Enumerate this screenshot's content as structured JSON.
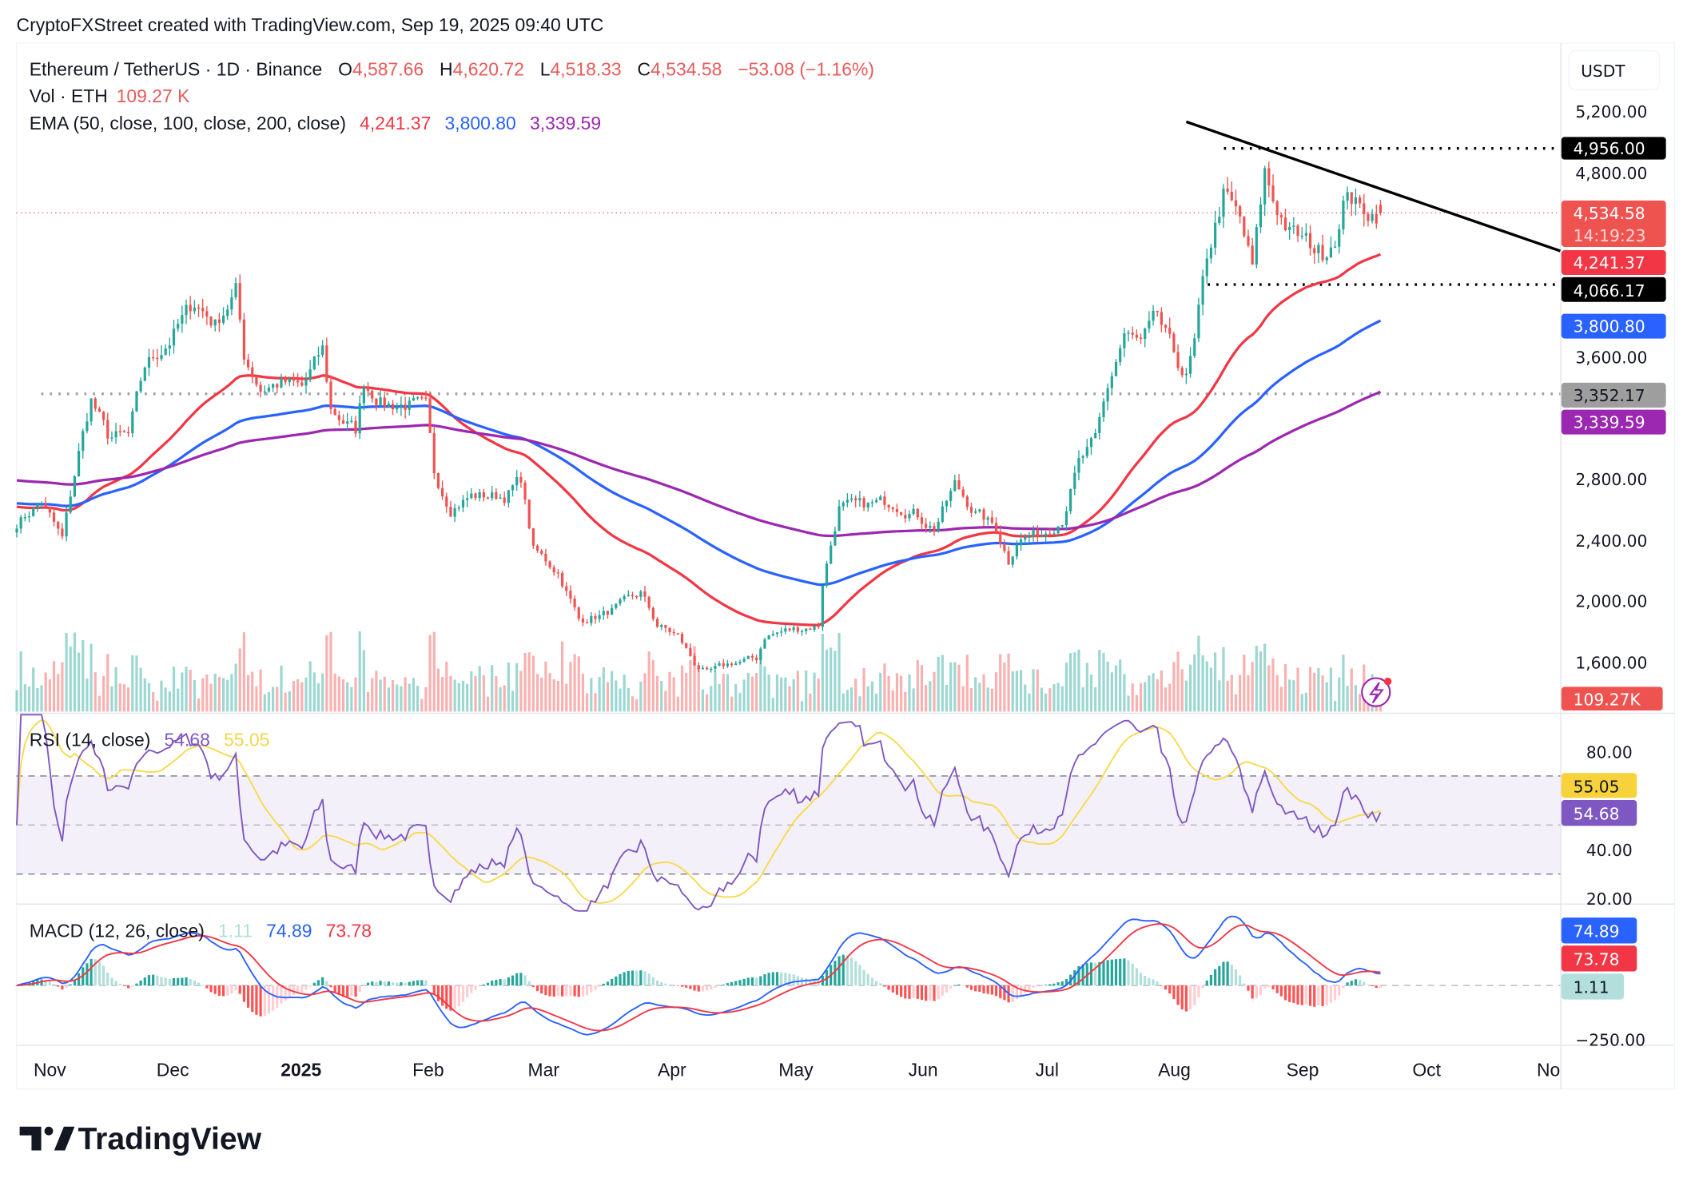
{
  "caption": "CryptoFXStreet created with TradingView.com, Sep 19, 2025 09:40 UTC",
  "legend": {
    "symbol": "Ethereum / TetherUS · 1D · Binance",
    "o_label": "O",
    "open": "4,587.66",
    "h_label": "H",
    "high": "4,620.72",
    "l_label": "L",
    "low": "4,518.33",
    "c_label": "C",
    "close": "4,534.58",
    "change": "−53.08 (−1.16%)",
    "vol_label": "Vol · ETH",
    "vol_value": "109.27 K",
    "ema_label": "EMA (50, close, 100, close, 200, close)",
    "ema50": "4,241.37",
    "ema100": "3,800.80",
    "ema200": "3,339.59",
    "rsi_label": "RSI (14, close)",
    "rsi_value": "54.68",
    "rsi_ma_value": "55.05",
    "macd_label": "MACD (12, 26, close)",
    "macd_hist": "1.11",
    "macd_value": "74.89",
    "macd_signal": "73.78"
  },
  "price_axis": {
    "currency": "USDT",
    "ticks": [
      "5,200.00",
      "4,800.00",
      "3,600.00",
      "2,800.00",
      "2,400.00",
      "2,000.00",
      "1,600.00"
    ],
    "tags": {
      "resistance": "4,956.00",
      "last_price": "4,534.58",
      "countdown": "14:19:23",
      "ema50": "4,241.37",
      "support": "4,066.17",
      "ema100": "3,800.80",
      "level": "3,352.17",
      "ema200": "3,339.59",
      "volume": "109.27K"
    }
  },
  "rsi_axis": {
    "ticks": [
      "80.00",
      "40.00",
      "20.00"
    ],
    "tags": {
      "ma": "55.05",
      "rsi": "54.68"
    }
  },
  "macd_axis": {
    "ticks": [
      "−250.00"
    ],
    "tags": {
      "macd": "74.89",
      "signal": "73.78",
      "hist": "1.11"
    }
  },
  "time_axis": [
    "Nov",
    "Dec",
    "2025",
    "Feb",
    "Mar",
    "Apr",
    "May",
    "Jun",
    "Jul",
    "Aug",
    "Sep",
    "Oct",
    "No"
  ],
  "logo": "TradingView",
  "colors": {
    "up": "#26a69a",
    "down": "#ef5350",
    "ema50": "#f23645",
    "ema100": "#2962ff",
    "ema200": "#9c27b0",
    "rsi": "#7e57c2",
    "rsi_ma": "#f7d94c",
    "macd": "#2962ff",
    "signal": "#f23645"
  },
  "chart_data": {
    "type": "candlestick",
    "title": "Ethereum / TetherUS · 1D · Binance",
    "ylim": [
      1400,
      5400
    ],
    "y_scale": "linear",
    "grid": false,
    "price_keypoints": [
      [
        "2024-10-24",
        2509
      ],
      [
        "2024-10-30",
        2650
      ],
      [
        "2024-11-04",
        2400
      ],
      [
        "2024-11-08",
        2967
      ],
      [
        "2024-11-11",
        3319
      ],
      [
        "2024-11-15",
        3072
      ],
      [
        "2024-11-20",
        3072
      ],
      [
        "2024-11-24",
        3530
      ],
      [
        "2024-11-30",
        3706
      ],
      [
        "2024-12-06",
        3953
      ],
      [
        "2024-12-11",
        3812
      ],
      [
        "2024-12-16",
        4024
      ],
      [
        "2024-12-18",
        3600
      ],
      [
        "2024-12-22",
        3389
      ],
      [
        "2024-12-27",
        3425
      ],
      [
        "2025-01-01",
        3389
      ],
      [
        "2025-01-06",
        3636
      ],
      [
        "2025-01-08",
        3249
      ],
      [
        "2025-01-14",
        3108
      ],
      [
        "2025-01-16",
        3425
      ],
      [
        "2025-01-21",
        3284
      ],
      [
        "2025-01-27",
        3284
      ],
      [
        "2025-01-31",
        3249
      ],
      [
        "2025-02-02",
        2826
      ],
      [
        "2025-02-06",
        2614
      ],
      [
        "2025-02-11",
        2685
      ],
      [
        "2025-02-19",
        2685
      ],
      [
        "2025-02-23",
        2791
      ],
      [
        "2025-02-26",
        2333
      ],
      [
        "2025-03-04",
        2192
      ],
      [
        "2025-03-09",
        1875
      ],
      [
        "2025-03-15",
        1910
      ],
      [
        "2025-03-20",
        1980
      ],
      [
        "2025-03-24",
        2051
      ],
      [
        "2025-03-28",
        1840
      ],
      [
        "2025-04-02",
        1769
      ],
      [
        "2025-04-06",
        1593
      ],
      [
        "2025-04-09",
        1523
      ],
      [
        "2025-04-15",
        1593
      ],
      [
        "2025-04-21",
        1620
      ],
      [
        "2025-04-23",
        1769
      ],
      [
        "2025-04-28",
        1804
      ],
      [
        "2025-05-06",
        1840
      ],
      [
        "2025-05-07",
        2121
      ],
      [
        "2025-05-11",
        2614
      ],
      [
        "2025-05-16",
        2614
      ],
      [
        "2025-05-24",
        2650
      ],
      [
        "2025-05-29",
        2579
      ],
      [
        "2025-06-03",
        2474
      ],
      [
        "2025-06-08",
        2755
      ],
      [
        "2025-06-13",
        2579
      ],
      [
        "2025-06-18",
        2474
      ],
      [
        "2025-06-21",
        2262
      ],
      [
        "2025-06-23",
        2403
      ],
      [
        "2025-06-29",
        2438
      ],
      [
        "2025-07-04",
        2544
      ],
      [
        "2025-07-08",
        2896
      ],
      [
        "2025-07-12",
        3037
      ],
      [
        "2025-07-15",
        3389
      ],
      [
        "2025-07-19",
        3742
      ],
      [
        "2025-07-23",
        3671
      ],
      [
        "2025-07-27",
        3847
      ],
      [
        "2025-07-31",
        3601
      ],
      [
        "2025-08-03",
        3460
      ],
      [
        "2025-08-05",
        3671
      ],
      [
        "2025-08-08",
        4235
      ],
      [
        "2025-08-12",
        4657
      ],
      [
        "2025-08-16",
        4481
      ],
      [
        "2025-08-19",
        4164
      ],
      [
        "2025-08-22",
        4798
      ],
      [
        "2025-08-24",
        4622
      ],
      [
        "2025-08-28",
        4411
      ],
      [
        "2025-09-01",
        4340
      ],
      [
        "2025-09-05",
        4270
      ],
      [
        "2025-09-09",
        4446
      ],
      [
        "2025-09-11",
        4693
      ],
      [
        "2025-09-14",
        4552
      ],
      [
        "2025-09-19",
        4534.58
      ]
    ],
    "last": {
      "open": 4587.66,
      "high": 4620.72,
      "low": 4518.33,
      "close": 4534.58,
      "volume": "109.27K"
    },
    "ema": {
      "ema50": 4241.37,
      "ema100": 3800.8,
      "ema200": 3339.59
    },
    "horizontal_levels": [
      4956.0,
      4066.17,
      3352.17
    ],
    "trendline": [
      [
        "2025-08-03",
        5130
      ],
      [
        "2025-10-31",
        4300
      ]
    ],
    "rsi": {
      "period": 14,
      "value": 54.68,
      "ma": 55.05,
      "bands": [
        70,
        50,
        30
      ],
      "ylim": [
        15,
        95
      ]
    },
    "macd": {
      "fast": 12,
      "slow": 26,
      "macd": 74.89,
      "signal": 73.78,
      "hist": 1.11
    }
  }
}
